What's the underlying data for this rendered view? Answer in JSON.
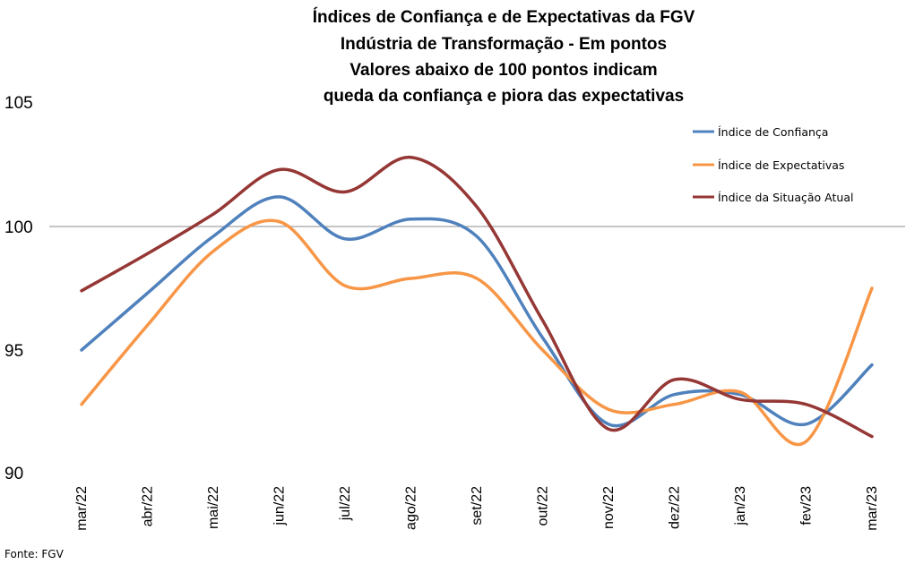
{
  "chart_data": {
    "type": "line",
    "title_lines": [
      "Índices de Confiança e de Expectativas da FGV",
      "Indústria de Transformação - Em pontos",
      "Valores abaixo de 100 pontos indicam",
      "queda da confiança e piora das expectativas"
    ],
    "categories": [
      "mar/22",
      "abr/22",
      "mai/22",
      "jun/22",
      "jul/22",
      "ago/22",
      "set/22",
      "out/22",
      "nov/22",
      "dez/22",
      "jan/23",
      "fev/23",
      "mar/23"
    ],
    "yticks": [
      "90",
      "95",
      "100",
      "105"
    ],
    "ylim": [
      90,
      105
    ],
    "reference_line": 100,
    "series": [
      {
        "name": "Índice de Confiança",
        "color": "#4F81BD",
        "values": [
          95.0,
          97.3,
          99.6,
          101.2,
          99.5,
          100.3,
          99.6,
          95.5,
          92.0,
          93.2,
          93.2,
          92.0,
          94.4
        ]
      },
      {
        "name": "Índice de Expectativas",
        "color": "#F79646",
        "values": [
          92.8,
          96.0,
          99.0,
          100.2,
          97.6,
          97.9,
          97.9,
          95.0,
          92.6,
          92.8,
          93.3,
          91.3,
          97.5
        ]
      },
      {
        "name": "Índice da Situação Atual",
        "color": "#953735",
        "values": [
          97.4,
          98.9,
          100.5,
          102.3,
          101.4,
          102.8,
          100.8,
          96.2,
          91.8,
          93.8,
          93.0,
          92.8,
          91.5
        ]
      }
    ],
    "legend_position": "top-right",
    "grid": false,
    "source": "Fonte: FGV"
  }
}
